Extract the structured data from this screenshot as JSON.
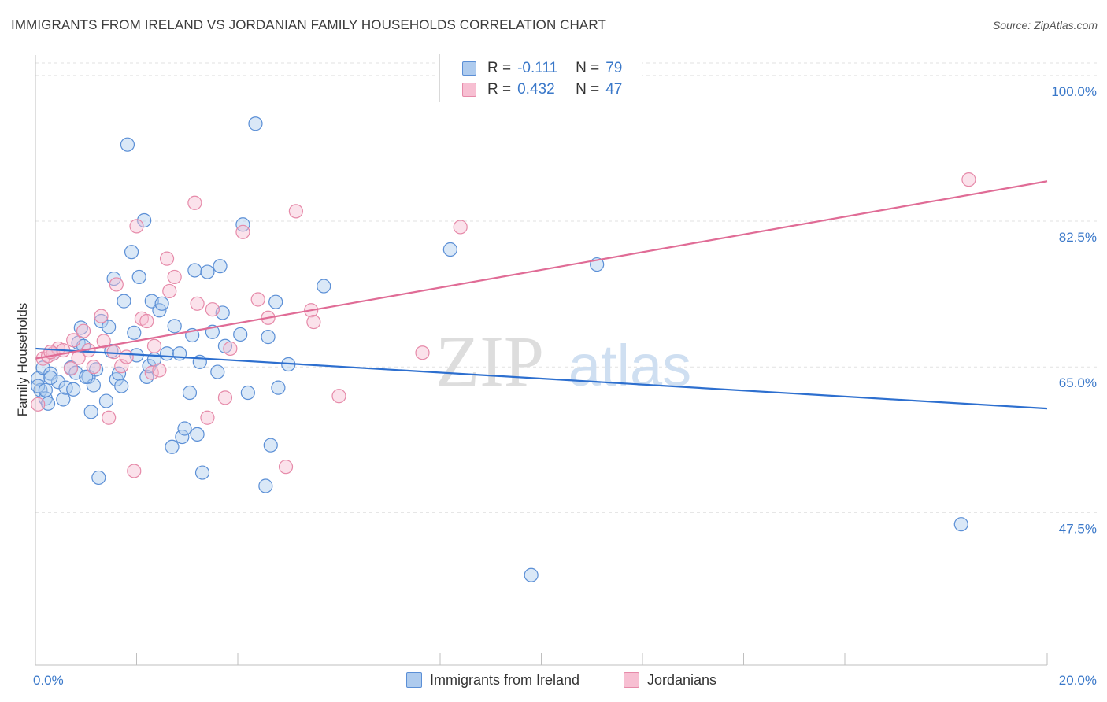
{
  "header": {
    "title": "IMMIGRANTS FROM IRELAND VS JORDANIAN FAMILY HOUSEHOLDS CORRELATION CHART",
    "source": "Source: ZipAtlas.com"
  },
  "legend": {
    "rows": [
      {
        "r_label": "R =",
        "r_value": "-0.111",
        "n_label": "N =",
        "n_value": "79"
      },
      {
        "r_label": "R =",
        "r_value": "0.432",
        "n_label": "N =",
        "n_value": "47"
      }
    ]
  },
  "watermark": {
    "zip": "ZIP",
    "atlas": "atlas"
  },
  "colors": {
    "blue_fill": "#aecbee",
    "blue_stroke": "#5b8fd6",
    "blue_line": "#2d6fcf",
    "pink_fill": "#f7bfd2",
    "pink_stroke": "#e68aa9",
    "pink_line": "#e06c96",
    "grid": "#e2e2e2",
    "tick_label": "#3a78c9"
  },
  "chart_data": {
    "type": "scatter",
    "title": "IMMIGRANTS FROM IRELAND VS JORDANIAN FAMILY HOUSEHOLDS CORRELATION CHART",
    "xlabel": "",
    "ylabel": "Family Households",
    "xlim": [
      0,
      20
    ],
    "ylim": [
      29.2,
      101.5
    ],
    "x_tick_labels": [
      {
        "value": 0,
        "label": "0.0%"
      },
      {
        "value": 20,
        "label": "20.0%"
      }
    ],
    "y_ticks": [
      {
        "value": 47.5,
        "label": "47.5%"
      },
      {
        "value": 65.0,
        "label": "65.0%"
      },
      {
        "value": 82.5,
        "label": "82.5%"
      },
      {
        "value": 100.0,
        "label": "100.0%"
      }
    ],
    "series": [
      {
        "name": "Immigrants from Ireland",
        "color": "blue",
        "trend": {
          "x": [
            0,
            20
          ],
          "y": [
            67.2,
            60.0
          ]
        },
        "points": [
          [
            0.05,
            63.6
          ],
          [
            0.1,
            62.2
          ],
          [
            0.15,
            64.9
          ],
          [
            0.2,
            61.2
          ],
          [
            0.25,
            60.6
          ],
          [
            0.3,
            64.2
          ],
          [
            0.35,
            66.6
          ],
          [
            0.45,
            63.2
          ],
          [
            0.55,
            61.1
          ],
          [
            0.6,
            62.5
          ],
          [
            0.7,
            64.9
          ],
          [
            0.75,
            62.3
          ],
          [
            0.8,
            64.3
          ],
          [
            0.85,
            67.9
          ],
          [
            0.9,
            69.7
          ],
          [
            0.95,
            67.5
          ],
          [
            1.05,
            63.8
          ],
          [
            1.1,
            59.6
          ],
          [
            1.15,
            62.8
          ],
          [
            1.2,
            64.7
          ],
          [
            1.25,
            51.7
          ],
          [
            1.3,
            70.5
          ],
          [
            1.4,
            60.9
          ],
          [
            1.45,
            69.8
          ],
          [
            1.5,
            66.9
          ],
          [
            1.55,
            75.6
          ],
          [
            1.6,
            63.5
          ],
          [
            1.65,
            64.2
          ],
          [
            1.7,
            62.7
          ],
          [
            1.75,
            72.9
          ],
          [
            1.82,
            91.7
          ],
          [
            1.9,
            78.8
          ],
          [
            1.95,
            69.1
          ],
          [
            2.0,
            66.4
          ],
          [
            2.05,
            75.8
          ],
          [
            2.15,
            82.6
          ],
          [
            2.2,
            63.8
          ],
          [
            2.25,
            65.1
          ],
          [
            2.3,
            72.9
          ],
          [
            2.35,
            65.9
          ],
          [
            2.45,
            71.8
          ],
          [
            2.5,
            72.6
          ],
          [
            2.6,
            66.6
          ],
          [
            2.7,
            55.4
          ],
          [
            2.75,
            69.9
          ],
          [
            2.85,
            66.6
          ],
          [
            2.9,
            56.6
          ],
          [
            2.95,
            57.6
          ],
          [
            3.05,
            61.9
          ],
          [
            3.1,
            68.8
          ],
          [
            3.15,
            76.6
          ],
          [
            3.2,
            56.9
          ],
          [
            3.25,
            65.6
          ],
          [
            3.3,
            52.3
          ],
          [
            3.4,
            76.4
          ],
          [
            3.5,
            69.2
          ],
          [
            3.6,
            64.4
          ],
          [
            3.65,
            77.1
          ],
          [
            3.7,
            71.5
          ],
          [
            3.75,
            67.5
          ],
          [
            4.05,
            68.9
          ],
          [
            4.1,
            82.1
          ],
          [
            4.2,
            61.9
          ],
          [
            4.35,
            94.2
          ],
          [
            4.55,
            50.7
          ],
          [
            4.6,
            68.6
          ],
          [
            4.65,
            55.6
          ],
          [
            4.75,
            72.8
          ],
          [
            4.8,
            62.5
          ],
          [
            5.0,
            65.3
          ],
          [
            5.7,
            74.7
          ],
          [
            8.2,
            79.1
          ],
          [
            9.8,
            40.0
          ],
          [
            11.1,
            77.3
          ],
          [
            18.3,
            46.1
          ],
          [
            0.05,
            62.7
          ],
          [
            0.2,
            62.2
          ],
          [
            0.3,
            63.7
          ],
          [
            1.0,
            63.8
          ]
        ]
      },
      {
        "name": "Jordanians",
        "color": "pink",
        "trend": {
          "x": [
            0,
            20
          ],
          "y": [
            66.0,
            87.3
          ]
        },
        "points": [
          [
            0.05,
            60.5
          ],
          [
            0.15,
            66.0
          ],
          [
            0.25,
            66.3
          ],
          [
            0.35,
            66.6
          ],
          [
            0.45,
            67.2
          ],
          [
            0.55,
            67.0
          ],
          [
            0.7,
            64.8
          ],
          [
            0.75,
            68.2
          ],
          [
            0.85,
            66.1
          ],
          [
            0.95,
            69.3
          ],
          [
            1.05,
            67.0
          ],
          [
            1.15,
            65.0
          ],
          [
            1.3,
            71.1
          ],
          [
            1.35,
            68.1
          ],
          [
            1.45,
            58.9
          ],
          [
            1.55,
            66.8
          ],
          [
            1.6,
            74.9
          ],
          [
            1.7,
            65.1
          ],
          [
            1.8,
            66.2
          ],
          [
            1.95,
            52.5
          ],
          [
            2.0,
            81.9
          ],
          [
            2.1,
            70.8
          ],
          [
            2.2,
            70.5
          ],
          [
            2.3,
            64.3
          ],
          [
            2.35,
            67.5
          ],
          [
            2.45,
            64.6
          ],
          [
            2.6,
            78.0
          ],
          [
            2.65,
            74.1
          ],
          [
            2.75,
            75.8
          ],
          [
            3.15,
            84.7
          ],
          [
            3.2,
            72.6
          ],
          [
            3.4,
            58.9
          ],
          [
            3.5,
            71.9
          ],
          [
            3.75,
            61.3
          ],
          [
            3.85,
            67.2
          ],
          [
            4.1,
            81.2
          ],
          [
            4.4,
            73.1
          ],
          [
            4.6,
            70.9
          ],
          [
            4.95,
            53.0
          ],
          [
            5.15,
            83.7
          ],
          [
            5.45,
            71.8
          ],
          [
            5.5,
            70.4
          ],
          [
            6.0,
            61.5
          ],
          [
            7.65,
            66.7
          ],
          [
            8.4,
            81.8
          ],
          [
            18.45,
            87.5
          ],
          [
            0.3,
            66.8
          ]
        ]
      }
    ]
  },
  "bottom_legend": [
    {
      "label": "Immigrants from Ireland"
    },
    {
      "label": "Jordanians"
    }
  ]
}
